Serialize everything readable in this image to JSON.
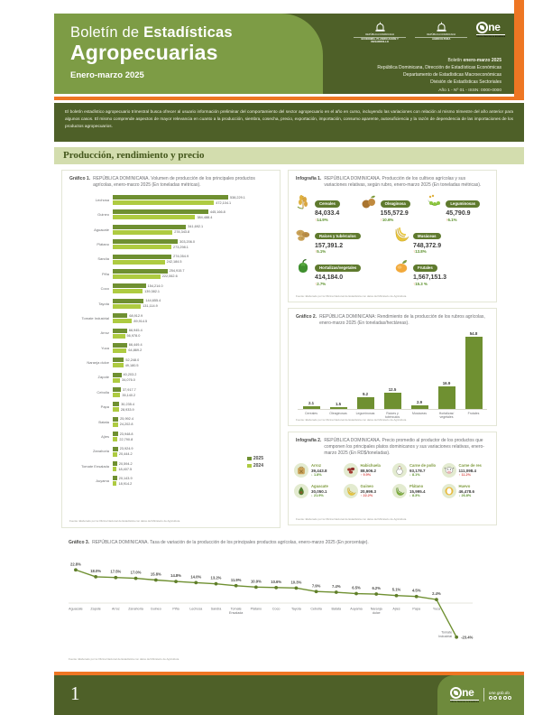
{
  "header": {
    "title_regular": "Boletín de ",
    "title_bold": "Estadísticas",
    "title_line2": "Agropecuarias",
    "subtitle": "Enero-marzo 2025",
    "ministry1_country": "REPÚBLICA DOMINICANA",
    "ministry1_name": "ECONOMÍA, PLANIFICACIÓN Y DESARROLLO",
    "ministry2_country": "REPÚBLICA DOMINICANA",
    "ministry2_name": "AGRICULTURA",
    "one_logo_text": "ne",
    "one_caption": "Oficina Nacional de Estadística",
    "meta_prefix": "Boletín ",
    "meta_bold": "enero-marzo 2025",
    "meta_line2": "República Dominicana, Dirección de Estadísticas Económicas",
    "meta_line3": "Departamento de Estadísticas Macroeconómicas",
    "meta_line4": "División de Estadísticas Sectoriales",
    "meta_line5": "Año 1 - Nº 01 - ISSN: 0000-0000"
  },
  "intro": {
    "text": "El boletín estadístico agropecuario trimestral busca ofrecer al usuario información preliminar del comportamiento del sector agropecuario en el año en curso, incluyendo las variaciones con relación al mismo trimestre del año anterior para algunos casos. El mismo comprende aspectos de mayor relevancia en cuanto a la producción, siembra, cosecha, precio, exportación, importación, consumo aparente, autosuficiencia y la razón de dependencia de las importaciones de los productos agropecuarios."
  },
  "section": {
    "title": "Producción, rendimiento y precio"
  },
  "source_note": "Fuente: Elaborado por la Oficina Nacional de Estadística con datos del Ministerio de Agricultura.",
  "footer": {
    "page_number": "1",
    "site": "one.gob.do",
    "one_logo_text": "ne",
    "one_caption": "Oficina Nacional de Estadística"
  },
  "colors": {
    "accent_orange": "#ee7623",
    "olive_dark": "#4e6028",
    "olive_mid": "#7d9c45",
    "bar_2025": "#6f9031",
    "bar_2024": "#aecb41",
    "pct_up_red": "#d9534f",
    "pct_down_green": "#5a8f29"
  },
  "chart_data": [
    {
      "id": "grafico1",
      "type": "bar",
      "orientation": "horizontal",
      "label": "Gráfico 1.",
      "title": "REPÚBLICA DOMINICANA. Volumen de producción de los principales productos agrícolas, enero-marzo 2025 (En toneladas métricas).",
      "legend_position": "right",
      "categories": [
        "Lechosa",
        "Guineo",
        "Aguacate",
        "Plátano",
        "Sandía",
        "Piña",
        "Coco",
        "Tayota",
        "Tomate Industrial",
        "Arroz",
        "Yuca",
        "Naranja dulce",
        "Zapote",
        "Cebolla",
        "Papa",
        "Batata",
        "Ajíes",
        "Zanahoria",
        "Tomate Ensalada",
        "Auyama"
      ],
      "series": [
        {
          "name": "2025",
          "values": [
            "538,229.1",
            "445,166.8",
            "341,692.1",
            "303,206.0",
            "274,054.9",
            "254,915.7",
            "154,214.0",
            "144,655.4",
            "68,912.9",
            "66,945.4",
            "66,449.4",
            "52,248.0",
            "40,203.2",
            "37,917.7",
            "30,235.4",
            "25,992.4",
            "23,948.8",
            "23,924.9",
            "20,594.2",
            "20,143.9"
          ]
        },
        {
          "name": "2024",
          "values": [
            "472,104.1",
            "384,488.4",
            "278,343.8",
            "273,298.1",
            "242,184.5",
            "222,062.6",
            "139,382.1",
            "131,114.9",
            "89,914.5",
            "56,978.0",
            "64,869.2",
            "49,180.5",
            "34,076.0",
            "35,140.2",
            "28,933.9",
            "24,202.8",
            "22,790.8",
            "20,444.2",
            "18,407.5",
            "18,914.2"
          ]
        }
      ]
    },
    {
      "id": "infografia1",
      "type": "pictogram",
      "label": "Infografía 1.",
      "title": "REPÚBLICA DOMINICANA. Producción de los cultivos agrícolas y sus variaciones relativas, según rubro, enero-marzo 2025 (En toneladas métricas).",
      "items": [
        {
          "icon": "wheat-icon",
          "name": "Cereales",
          "value": "84,033.4",
          "change": "14.9%",
          "direction": "up"
        },
        {
          "icon": "nuts-icon",
          "name": "Oleaginosa",
          "value": "155,572.9",
          "change": "10.6%",
          "direction": "up"
        },
        {
          "icon": "legume-pod-icon",
          "name": "Leguminosas",
          "value": "45,790.9",
          "change": "6.1%",
          "direction": "up"
        },
        {
          "icon": "tubers-icon",
          "name": "Raíces y tubérculos",
          "value": "157,391.2",
          "change": "5.1%",
          "direction": "up"
        },
        {
          "icon": "bananas-icon",
          "name": "Musáceas",
          "value": "748,372.9",
          "change": "13.8%",
          "direction": "up"
        },
        {
          "icon": "pepper-icon",
          "name": "Hortalizas/vegetales",
          "value": "414,184.0",
          "change": "2.7%",
          "direction": "up"
        },
        {
          "icon": "mango-icon",
          "name": "Frutales",
          "value": "1,567,151.3",
          "change": "15.3 %",
          "direction": "up"
        }
      ]
    },
    {
      "id": "grafico2",
      "type": "bar",
      "orientation": "vertical",
      "label": "Gráfico 2.",
      "title": "REPÚBLICA DOMINICANA: Rendimiento de la producción de los rubros agrícolas, enero-marzo 2025 (En toneladas/hectáreas).",
      "categories": [
        "Cereales",
        "Oleaginosas",
        "Leguminosas",
        "Raíces y tubérculos",
        "Musáceas",
        "Hortalizas/ vegetales",
        "Frutales"
      ],
      "values": [
        2.1,
        1.5,
        9.2,
        12.5,
        2.9,
        16.9,
        54.8
      ],
      "ylim": [
        0,
        60
      ],
      "grid": false
    },
    {
      "id": "infografia2",
      "type": "pictogram",
      "label": "Infografía 2.",
      "title": "REPÚBLICA DOMINICANA. Precio promedio al productor de los productos que componen los principales platos dominicanos y sus variaciones relativas, enero-marzo 2025 (En RD$/toneladas).",
      "items": [
        {
          "icon": "rice-sack-icon",
          "name": "Arroz",
          "value": "39,443.8",
          "change": "1.8%",
          "direction": "down"
        },
        {
          "icon": "beans-icon",
          "name": "Habichuela",
          "value": "88,506.2",
          "change": "9.9%",
          "direction": "up"
        },
        {
          "icon": "chicken-icon",
          "name": "Carne de pollo",
          "value": "93,178.7",
          "change": "8.1%",
          "direction": "down"
        },
        {
          "icon": "cow-icon",
          "name": "Carne de res",
          "value": "111,098.4",
          "change": "11.2%",
          "direction": "up"
        },
        {
          "icon": "avocado-icon",
          "name": "Aguacate",
          "value": "30,050.1",
          "change": "21.9%",
          "direction": "down"
        },
        {
          "icon": "guineo-icon",
          "name": "Guineo",
          "value": "20,999.3",
          "change": "22.2%",
          "direction": "up"
        },
        {
          "icon": "platano-icon",
          "name": "Plátano",
          "value": "15,995.4",
          "change": "8.3%",
          "direction": "down"
        },
        {
          "icon": "egg-icon",
          "name": "Huevo",
          "value": "46,478.6",
          "change": "26.8%",
          "direction": "down"
        }
      ]
    },
    {
      "id": "grafico3",
      "type": "line",
      "label": "Gráfico 3.",
      "title": "REPÚBLICA DOMINICANA. Tasa de variación de la producción de los principales productos agrícolas, enero-marzo 2025 (En porcentaje).",
      "ylim": [
        -30,
        30
      ],
      "points": [
        {
          "name": "Aguacate",
          "label": "22.8%",
          "value": 22.8
        },
        {
          "name": "Zapote",
          "label": "18.0%",
          "value": 18.0
        },
        {
          "name": "Arroz",
          "label": "17.5%",
          "value": 17.5
        },
        {
          "name": "Zanahoria",
          "label": "17.0%",
          "value": 17.0
        },
        {
          "name": "Guineo",
          "label": "15.8%",
          "value": 15.8
        },
        {
          "name": "Piña",
          "label": "14.8%",
          "value": 14.8
        },
        {
          "name": "Lechosa",
          "label": "14.0%",
          "value": 14.0
        },
        {
          "name": "Sandía",
          "label": "13.2%",
          "value": 13.2
        },
        {
          "name": "Tomate Ensalada",
          "label": "11.9%",
          "value": 11.9
        },
        {
          "name": "Plátano",
          "label": "10.9%",
          "value": 10.9
        },
        {
          "name": "Coco",
          "label": "10.6%",
          "value": 10.6
        },
        {
          "name": "Tayota",
          "label": "10.3%",
          "value": 10.3
        },
        {
          "name": "Cebolla",
          "label": "7.9%",
          "value": 7.9
        },
        {
          "name": "Batata",
          "label": "7.4%",
          "value": 7.4
        },
        {
          "name": "Auyama",
          "label": "6.5%",
          "value": 6.5
        },
        {
          "name": "Naranja dulce",
          "label": "6.2%",
          "value": 6.2
        },
        {
          "name": "Ajíes",
          "label": "5.1%",
          "value": 5.1
        },
        {
          "name": "Papa",
          "label": "4.5%",
          "value": 4.5
        },
        {
          "name": "Yuca",
          "label": "2.4%",
          "value": 2.4
        },
        {
          "name": "Tomate Industrial",
          "label": "-23.4%",
          "value": -23.4
        }
      ]
    }
  ]
}
